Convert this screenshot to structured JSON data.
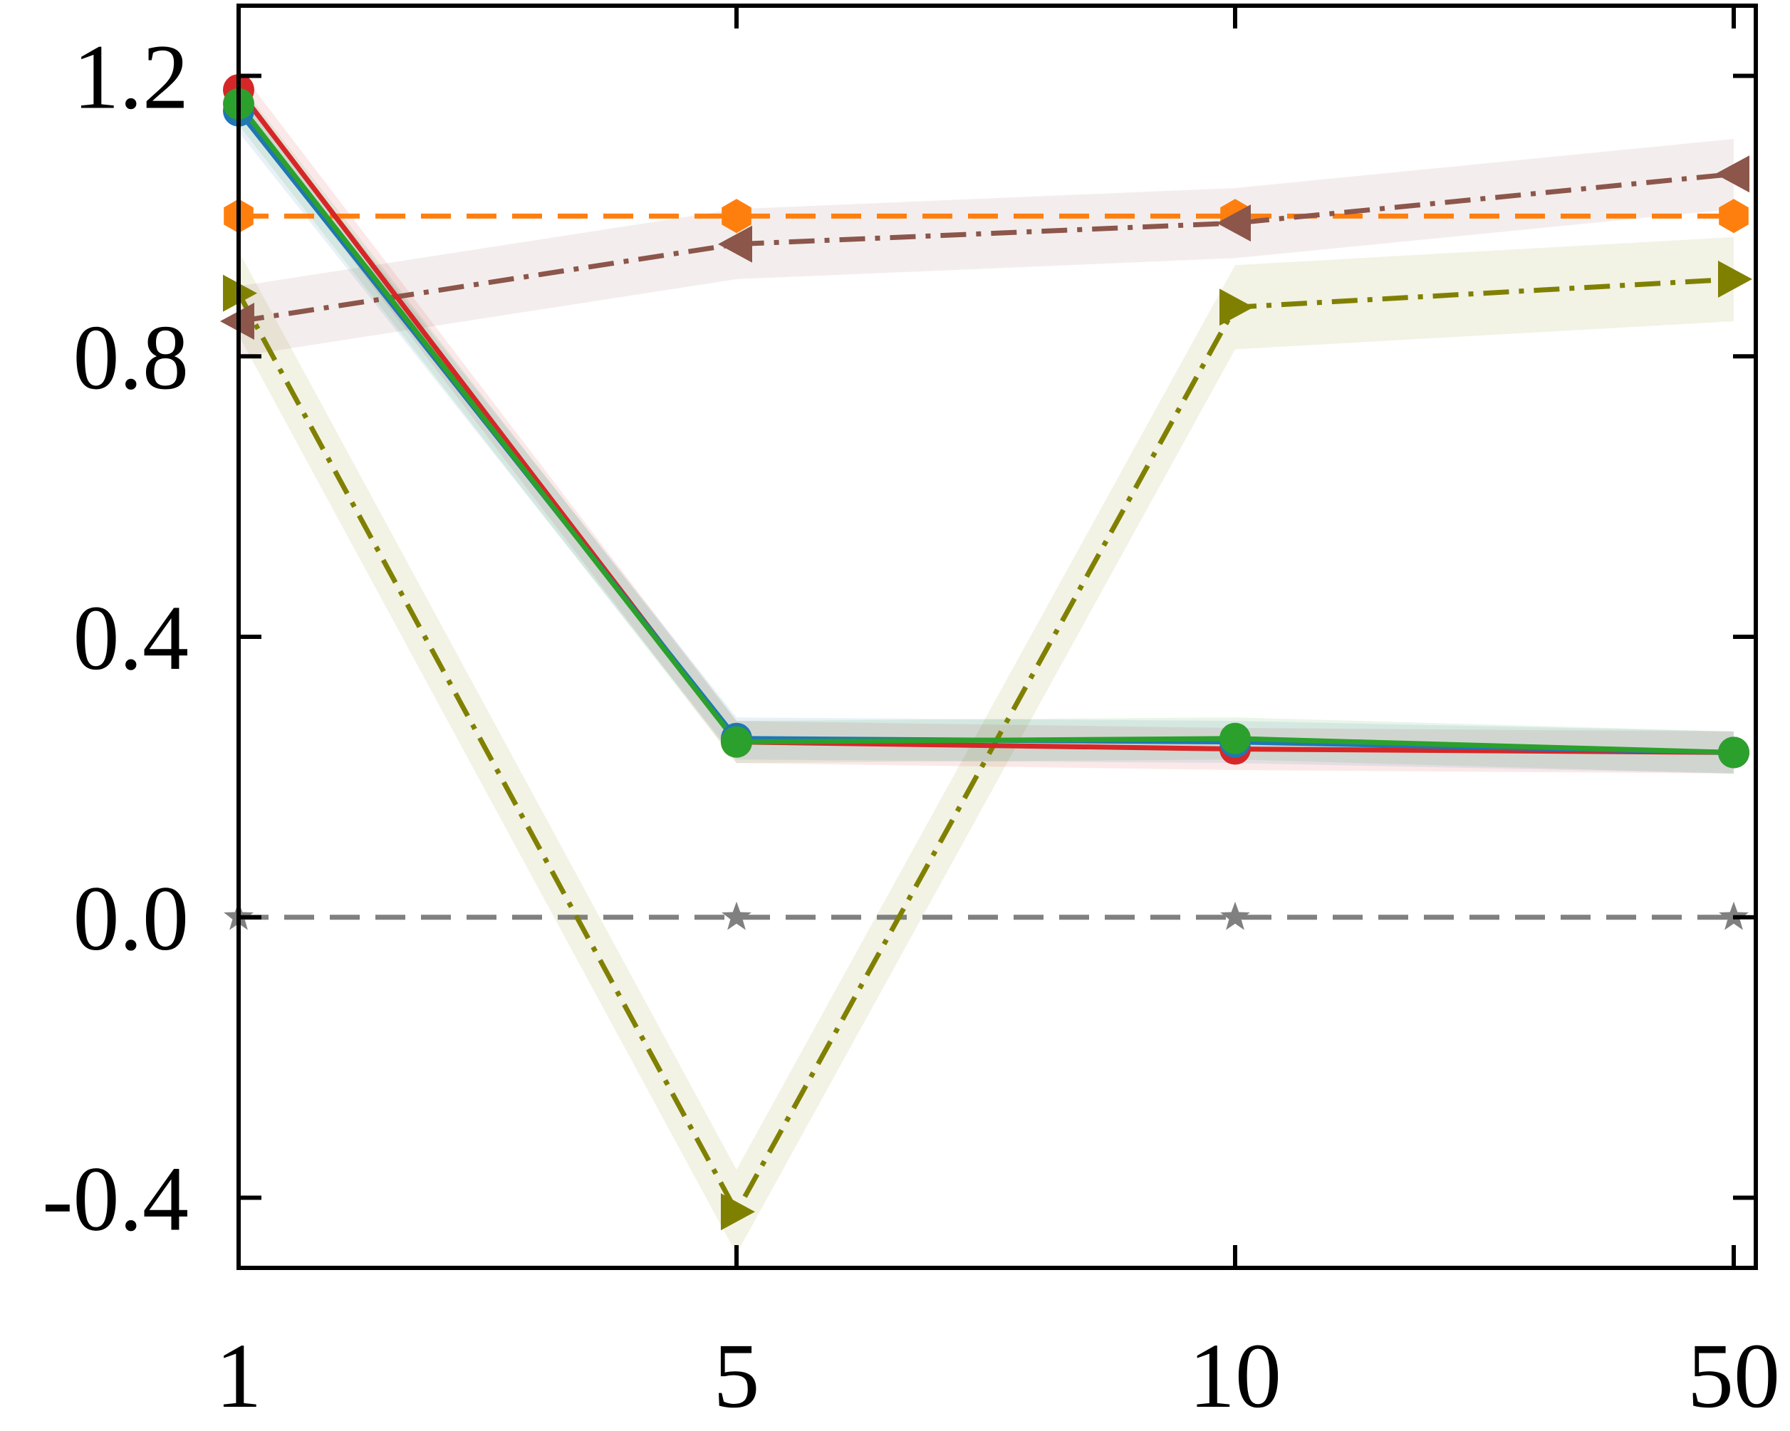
{
  "chart_data": {
    "type": "line",
    "title": "",
    "xlabel": "",
    "ylabel": "",
    "x_scale": "categorical",
    "categories": [
      "1",
      "5",
      "10",
      "50"
    ],
    "ylim": [
      -0.5,
      1.3
    ],
    "yticks": [
      1.2,
      0.8,
      0.4,
      0.0,
      -0.4
    ],
    "ytick_labels": [
      "1.2",
      "0.8",
      "0.4",
      "0.0",
      "-0.4"
    ],
    "grid": false,
    "legend": "none",
    "series": [
      {
        "values": [
          0.0,
          0.0,
          0.0,
          0.0
        ],
        "color": "#808080",
        "marker": "star",
        "dash": "dashed",
        "band": 0.0
      },
      {
        "values": [
          1.0,
          1.0,
          1.0,
          1.0
        ],
        "color": "#ff7f0e",
        "marker": "hexagon",
        "dash": "dashed",
        "band": 0.0
      },
      {
        "values": [
          0.85,
          0.96,
          0.99,
          1.06
        ],
        "color": "#8c564b",
        "marker": "triangle-left",
        "dash": "dashdot",
        "band": 0.05
      },
      {
        "values": [
          0.89,
          -0.42,
          0.87,
          0.91
        ],
        "color": "#808000",
        "marker": "triangle-right",
        "dash": "dashdot",
        "band": 0.06
      },
      {
        "values": [
          1.18,
          0.25,
          0.24,
          0.235
        ],
        "color": "#d62728",
        "marker": "circle",
        "dash": "solid",
        "band": 0.03
      },
      {
        "values": [
          1.15,
          0.255,
          0.25,
          0.235
        ],
        "color": "#1f77b4",
        "marker": "circle",
        "dash": "solid",
        "band": 0.03
      },
      {
        "values": [
          1.16,
          0.25,
          0.255,
          0.235
        ],
        "color": "#2ca02c",
        "marker": "circle",
        "dash": "solid",
        "band": 0.03
      }
    ]
  }
}
